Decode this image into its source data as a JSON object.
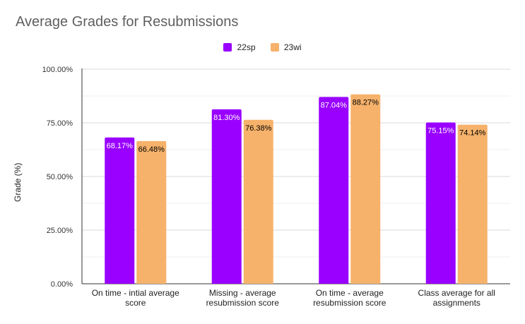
{
  "chart_data": {
    "type": "bar",
    "title": "Average Grades for Resubmissions",
    "xlabel": "",
    "ylabel": "Grade (%)",
    "ylim": [
      0,
      100
    ],
    "yticks": [
      "0.00%",
      "25.00%",
      "50.00%",
      "75.00%",
      "100.00%"
    ],
    "ytick_values": [
      0,
      25,
      50,
      75,
      100
    ],
    "categories": [
      [
        "On time - intial average",
        "score"
      ],
      [
        "Missing - average",
        "resubmission score"
      ],
      [
        "On time - average",
        "resubmission score"
      ],
      [
        "Class average for all",
        "assignments"
      ]
    ],
    "series": [
      {
        "name": "22sp",
        "color": "#9900ff",
        "label_color": "#ffffff",
        "values": [
          68.17,
          81.3,
          87.04,
          75.15
        ],
        "labels": [
          "68.17%",
          "81.30%",
          "87.04%",
          "75.15%"
        ]
      },
      {
        "name": "23wi",
        "color": "#f6b26b",
        "label_color": "#000000",
        "values": [
          66.48,
          76.38,
          88.27,
          74.14
        ],
        "labels": [
          "66.48%",
          "76.38%",
          "88.27%",
          "74.14%"
        ]
      }
    ],
    "grid": true,
    "legend_position": "top-center"
  }
}
